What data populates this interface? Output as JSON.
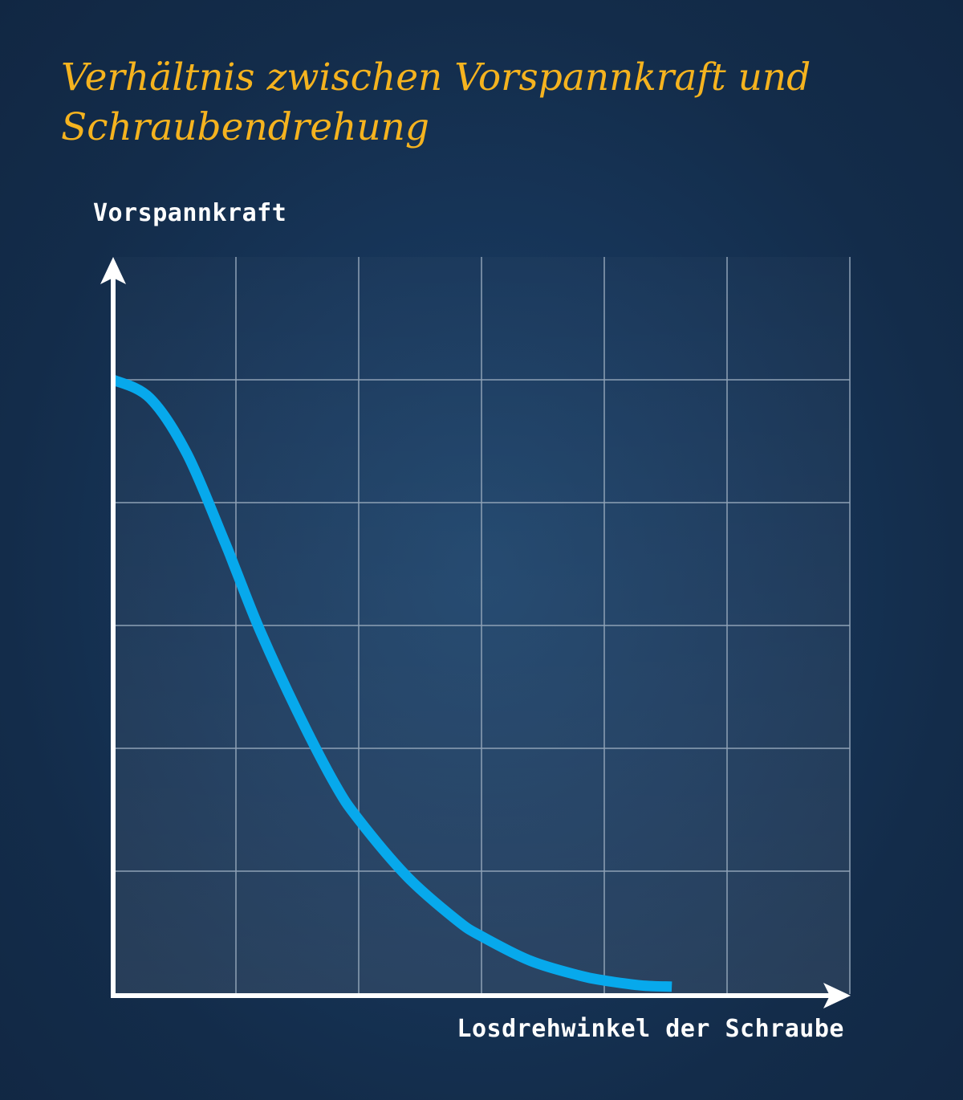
{
  "title": "Verhältnis zwischen Vorspannkraft und Schraubendrehung",
  "chart_data": {
    "type": "line",
    "title": "Verhältnis zwischen Vorspannkraft und Schraubendrehung",
    "xlabel": "Losdrehwinkel der Schraube",
    "ylabel": "Vorspannkraft",
    "xlim": [
      0,
      6
    ],
    "ylim": [
      0,
      6
    ],
    "grid": true,
    "series": [
      {
        "color": "#07a9ec",
        "x": [
          0,
          0.3,
          0.6,
          0.9,
          1.0,
          1.2,
          1.5,
          1.8,
          2.0,
          2.4,
          2.8,
          3.0,
          3.4,
          3.8,
          4.0,
          4.3,
          4.55
        ],
        "y": [
          5.0,
          4.85,
          4.4,
          3.7,
          3.45,
          2.95,
          2.3,
          1.72,
          1.42,
          0.95,
          0.6,
          0.47,
          0.27,
          0.15,
          0.11,
          0.07,
          0.06
        ]
      }
    ],
    "colors": {
      "grid": "#8fa1b6",
      "axis": "#ffffff",
      "plot_bg": "#2c4a67"
    }
  }
}
